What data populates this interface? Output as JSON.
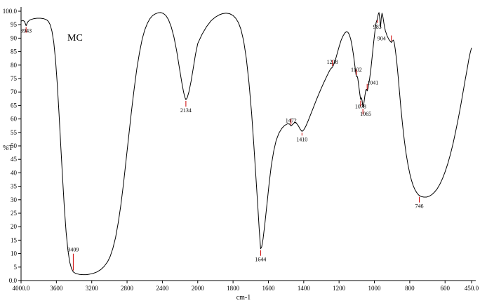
{
  "chart_data": {
    "type": "line",
    "annotation": "MC",
    "xlabel": "cm-1",
    "ylabel": "%T",
    "grid": false,
    "legend": "none",
    "background_color": "#ffffff",
    "peak_marker_color": "#cc0000",
    "x_axis": {
      "max": 4000,
      "min": 450,
      "scale": "split: 400 per division above 2000, 200 per division below 2000",
      "tick_values": [
        4000,
        3600,
        3200,
        2800,
        2400,
        2000,
        1800,
        1600,
        1400,
        1200,
        1000,
        800,
        600,
        450
      ],
      "tick_labels": [
        "4000.0",
        "3600",
        "3200",
        "2800",
        "2400",
        "2000",
        "1800",
        "1600",
        "1400",
        "1200",
        "1000",
        "800",
        "600",
        "450.0"
      ]
    },
    "y_axis": {
      "max": 100,
      "min": 0,
      "tick_values": [
        100,
        95,
        90,
        85,
        80,
        75,
        70,
        65,
        60,
        55,
        50,
        45,
        40,
        35,
        30,
        25,
        20,
        15,
        10,
        5,
        0
      ],
      "tick_labels": [
        "100.0",
        "95",
        "90",
        "85",
        "80",
        "75",
        "70",
        "65",
        "60",
        "55",
        "50",
        "45",
        "40",
        "35",
        "30",
        "25",
        "20",
        "15",
        "10",
        "5",
        "0.0"
      ]
    },
    "peaks": [
      {
        "label": "3943",
        "nu": 3943,
        "t": 94.6,
        "side": "below",
        "dy": -8
      },
      {
        "label": "3409",
        "nu": 3409,
        "t": 3.2,
        "side": "above",
        "tick": 24
      },
      {
        "label": "2134",
        "nu": 2134,
        "t": 67.2,
        "side": "below"
      },
      {
        "label": "1644",
        "nu": 1644,
        "t": 11.8,
        "side": "below"
      },
      {
        "label": "1472",
        "nu": 1472,
        "t": 57.4,
        "side": "above",
        "dy": 8
      },
      {
        "label": "1410",
        "nu": 1410,
        "t": 55.4,
        "side": "below",
        "tick": 4
      },
      {
        "label": "1238",
        "nu": 1238,
        "t": 79.2,
        "side": "above",
        "dy": 8
      },
      {
        "label": "1102",
        "nu": 1102,
        "t": 75.8,
        "side": "above",
        "dy": 6
      },
      {
        "label": "1078",
        "nu": 1078,
        "t": 67.3,
        "side": "below",
        "dy": -5
      },
      {
        "label": "1065",
        "nu": 1065,
        "t": 64.3,
        "side": "below",
        "dx": 4,
        "dy": -6
      },
      {
        "label": "1041",
        "nu": 1041,
        "t": 70.4,
        "side": "above",
        "dx": 8,
        "dy": 4
      },
      {
        "label": "983",
        "nu": 983,
        "t": 97.2,
        "side": "below",
        "tick": 4
      },
      {
        "label": "904",
        "nu": 904,
        "t": 88.4,
        "side": "above",
        "dx": -14,
        "dy": 10
      },
      {
        "label": "746",
        "nu": 746,
        "t": 31.6,
        "side": "below"
      }
    ],
    "series": [
      {
        "name": "MC",
        "color": "#000000",
        "points": [
          [
            4000,
            96.3
          ],
          [
            3980,
            96.6
          ],
          [
            3960,
            96.2
          ],
          [
            3943,
            94.6
          ],
          [
            3925,
            96.0
          ],
          [
            3900,
            96.8
          ],
          [
            3860,
            97.2
          ],
          [
            3820,
            97.4
          ],
          [
            3780,
            97.4
          ],
          [
            3740,
            97.2
          ],
          [
            3710,
            96.8
          ],
          [
            3690,
            96.2
          ],
          [
            3670,
            95.0
          ],
          [
            3650,
            92.5
          ],
          [
            3630,
            88.5
          ],
          [
            3610,
            82.0
          ],
          [
            3590,
            73.0
          ],
          [
            3570,
            62.0
          ],
          [
            3550,
            50.0
          ],
          [
            3530,
            38.0
          ],
          [
            3510,
            27.0
          ],
          [
            3490,
            18.0
          ],
          [
            3470,
            11.5
          ],
          [
            3450,
            7.0
          ],
          [
            3430,
            4.5
          ],
          [
            3409,
            3.2
          ],
          [
            3380,
            2.6
          ],
          [
            3340,
            2.3
          ],
          [
            3300,
            2.2
          ],
          [
            3260,
            2.2
          ],
          [
            3220,
            2.4
          ],
          [
            3180,
            2.7
          ],
          [
            3140,
            3.2
          ],
          [
            3100,
            4.0
          ],
          [
            3060,
            5.2
          ],
          [
            3020,
            7.0
          ],
          [
            2990,
            9.0
          ],
          [
            2960,
            12.0
          ],
          [
            2930,
            16.0
          ],
          [
            2900,
            21.5
          ],
          [
            2870,
            28.0
          ],
          [
            2840,
            36.0
          ],
          [
            2810,
            45.0
          ],
          [
            2780,
            54.0
          ],
          [
            2750,
            63.0
          ],
          [
            2720,
            71.0
          ],
          [
            2690,
            78.5
          ],
          [
            2660,
            84.5
          ],
          [
            2630,
            89.5
          ],
          [
            2600,
            93.0
          ],
          [
            2570,
            95.5
          ],
          [
            2540,
            97.3
          ],
          [
            2510,
            98.4
          ],
          [
            2480,
            99.0
          ],
          [
            2450,
            99.4
          ],
          [
            2420,
            99.5
          ],
          [
            2390,
            99.2
          ],
          [
            2360,
            98.4
          ],
          [
            2330,
            96.8
          ],
          [
            2300,
            94.2
          ],
          [
            2270,
            90.5
          ],
          [
            2240,
            85.5
          ],
          [
            2210,
            79.5
          ],
          [
            2180,
            73.5
          ],
          [
            2160,
            70.0
          ],
          [
            2145,
            68.0
          ],
          [
            2134,
            67.2
          ],
          [
            2120,
            67.8
          ],
          [
            2100,
            70.0
          ],
          [
            2075,
            74.0
          ],
          [
            2050,
            79.0
          ],
          [
            2025,
            84.0
          ],
          [
            2000,
            88.0
          ],
          [
            1975,
            91.5
          ],
          [
            1950,
            94.3
          ],
          [
            1925,
            96.4
          ],
          [
            1900,
            97.8
          ],
          [
            1880,
            98.6
          ],
          [
            1860,
            99.1
          ],
          [
            1840,
            99.3
          ],
          [
            1820,
            99.1
          ],
          [
            1800,
            98.4
          ],
          [
            1785,
            97.4
          ],
          [
            1770,
            95.8
          ],
          [
            1755,
            93.2
          ],
          [
            1740,
            89.0
          ],
          [
            1725,
            82.5
          ],
          [
            1710,
            73.5
          ],
          [
            1695,
            62.0
          ],
          [
            1682,
            50.0
          ],
          [
            1670,
            38.0
          ],
          [
            1660,
            27.5
          ],
          [
            1652,
            19.0
          ],
          [
            1646,
            13.5
          ],
          [
            1644,
            11.8
          ],
          [
            1638,
            12.5
          ],
          [
            1630,
            15.5
          ],
          [
            1620,
            21.0
          ],
          [
            1608,
            28.5
          ],
          [
            1596,
            36.0
          ],
          [
            1584,
            42.5
          ],
          [
            1570,
            48.0
          ],
          [
            1556,
            52.0
          ],
          [
            1540,
            54.8
          ],
          [
            1524,
            56.5
          ],
          [
            1508,
            57.6
          ],
          [
            1492,
            58.2
          ],
          [
            1480,
            58.1
          ],
          [
            1472,
            57.4
          ],
          [
            1462,
            58.0
          ],
          [
            1452,
            58.7
          ],
          [
            1442,
            58.5
          ],
          [
            1430,
            57.4
          ],
          [
            1420,
            56.2
          ],
          [
            1410,
            55.4
          ],
          [
            1400,
            55.9
          ],
          [
            1388,
            57.3
          ],
          [
            1375,
            59.3
          ],
          [
            1360,
            61.8
          ],
          [
            1345,
            64.3
          ],
          [
            1330,
            66.8
          ],
          [
            1315,
            69.2
          ],
          [
            1300,
            71.5
          ],
          [
            1285,
            73.7
          ],
          [
            1270,
            75.8
          ],
          [
            1258,
            77.4
          ],
          [
            1248,
            78.6
          ],
          [
            1238,
            79.2
          ],
          [
            1232,
            79.9
          ],
          [
            1222,
            81.6
          ],
          [
            1212,
            84.0
          ],
          [
            1200,
            86.8
          ],
          [
            1188,
            89.3
          ],
          [
            1176,
            91.0
          ],
          [
            1166,
            92.0
          ],
          [
            1158,
            92.4
          ],
          [
            1150,
            92.2
          ],
          [
            1142,
            91.3
          ],
          [
            1134,
            89.6
          ],
          [
            1126,
            87.0
          ],
          [
            1118,
            83.6
          ],
          [
            1110,
            79.6
          ],
          [
            1104,
            76.5
          ],
          [
            1102,
            75.8
          ],
          [
            1098,
            75.9
          ],
          [
            1094,
            75.0
          ],
          [
            1088,
            72.0
          ],
          [
            1082,
            69.0
          ],
          [
            1078,
            67.3
          ],
          [
            1074,
            67.9
          ],
          [
            1070,
            67.0
          ],
          [
            1065,
            64.3
          ],
          [
            1060,
            65.5
          ],
          [
            1054,
            68.5
          ],
          [
            1048,
            70.8
          ],
          [
            1044,
            71.0
          ],
          [
            1041,
            70.4
          ],
          [
            1036,
            71.5
          ],
          [
            1028,
            74.5
          ],
          [
            1020,
            78.5
          ],
          [
            1012,
            83.5
          ],
          [
            1004,
            88.5
          ],
          [
            996,
            93.0
          ],
          [
            990,
            95.8
          ],
          [
            983,
            97.2
          ],
          [
            978,
            98.9
          ],
          [
            974,
            99.5
          ],
          [
            969,
            97.0
          ],
          [
            965,
            94.0
          ],
          [
            961,
            97.5
          ],
          [
            957,
            99.3
          ],
          [
            952,
            98.0
          ],
          [
            946,
            95.5
          ],
          [
            938,
            92.8
          ],
          [
            928,
            90.8
          ],
          [
            918,
            89.5
          ],
          [
            910,
            88.8
          ],
          [
            904,
            88.4
          ],
          [
            898,
            88.9
          ],
          [
            893,
            89.3
          ],
          [
            888,
            88.5
          ],
          [
            882,
            86.0
          ],
          [
            874,
            81.5
          ],
          [
            866,
            76.0
          ],
          [
            858,
            70.0
          ],
          [
            850,
            64.0
          ],
          [
            840,
            57.5
          ],
          [
            830,
            51.8
          ],
          [
            820,
            47.0
          ],
          [
            810,
            43.0
          ],
          [
            800,
            39.8
          ],
          [
            790,
            37.2
          ],
          [
            780,
            35.2
          ],
          [
            770,
            33.7
          ],
          [
            760,
            32.6
          ],
          [
            750,
            31.8
          ],
          [
            746,
            31.6
          ],
          [
            735,
            31.2
          ],
          [
            720,
            31.0
          ],
          [
            705,
            31.0
          ],
          [
            690,
            31.3
          ],
          [
            675,
            31.9
          ],
          [
            660,
            32.8
          ],
          [
            645,
            34.0
          ],
          [
            630,
            35.7
          ],
          [
            615,
            37.8
          ],
          [
            600,
            40.3
          ],
          [
            585,
            43.3
          ],
          [
            570,
            46.8
          ],
          [
            555,
            50.8
          ],
          [
            540,
            55.3
          ],
          [
            525,
            60.2
          ],
          [
            510,
            65.5
          ],
          [
            498,
            70.0
          ],
          [
            486,
            74.5
          ],
          [
            475,
            78.5
          ],
          [
            466,
            82.0
          ],
          [
            458,
            84.5
          ],
          [
            452,
            86.0
          ],
          [
            450,
            86.4
          ]
        ]
      }
    ]
  }
}
